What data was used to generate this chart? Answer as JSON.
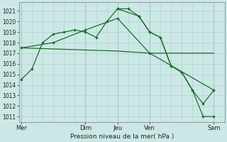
{
  "background_color": "#cce8e6",
  "grid_color": "#aacccc",
  "line_color": "#1a6e2e",
  "xlabel": "Pression niveau de la mer( hPa )",
  "ylim": [
    1010.5,
    1021.8
  ],
  "yticks": [
    1011,
    1012,
    1013,
    1014,
    1015,
    1016,
    1017,
    1018,
    1019,
    1020,
    1021
  ],
  "day_labels": [
    "Mer",
    "Dim",
    "Jeu",
    "Ven",
    "Sam"
  ],
  "day_positions": [
    0,
    9,
    13.5,
    18,
    27
  ],
  "vline_positions": [
    0,
    9,
    13.5,
    18,
    27
  ],
  "series1_x": [
    0,
    1.5,
    3,
    4.5,
    6,
    7.5,
    9,
    10.5,
    12,
    13.5,
    15,
    16.5,
    18,
    19.5,
    21,
    22.5,
    24,
    25.5,
    27
  ],
  "series1_y": [
    1014.5,
    1015.5,
    1018.0,
    1018.8,
    1019.0,
    1019.2,
    1019.0,
    1018.5,
    1020.0,
    1021.2,
    1021.2,
    1020.5,
    1019.0,
    1018.5,
    1015.8,
    1015.2,
    1013.5,
    1011.0,
    1011.0
  ],
  "series2_x": [
    0,
    4.5,
    9,
    13.5,
    18,
    27
  ],
  "series2_y": [
    1017.5,
    1018.0,
    1019.2,
    1020.3,
    1017.0,
    1013.5
  ],
  "series3_x": [
    0,
    9,
    13.5,
    18,
    27
  ],
  "series3_y": [
    1017.5,
    1017.3,
    1017.2,
    1017.0,
    1017.0
  ],
  "series4_x": [
    13.5,
    16.5,
    18,
    19.5,
    21,
    22.5,
    24,
    25.5,
    27
  ],
  "series4_y": [
    1021.2,
    1020.5,
    1019.0,
    1018.5,
    1015.8,
    1015.2,
    1013.5,
    1012.2,
    1013.5
  ]
}
